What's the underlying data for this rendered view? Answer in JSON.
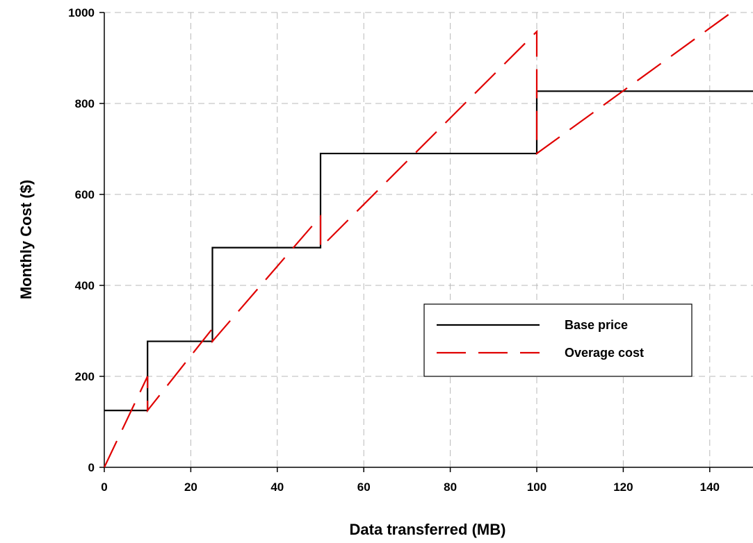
{
  "chart_data": {
    "type": "line",
    "title": "",
    "xlabel": "Data transferred (MB)",
    "ylabel": "Monthly Cost ($)",
    "xlim": [
      0,
      150
    ],
    "ylim": [
      0,
      1000
    ],
    "xticks": [
      0,
      20,
      40,
      60,
      80,
      100,
      120,
      140
    ],
    "yticks": [
      0,
      200,
      400,
      600,
      800,
      1000
    ],
    "grid": true,
    "legend_position": "lower-right",
    "series": [
      {
        "name": "Base price",
        "color": "#000000",
        "style": "solid",
        "x": [
          0,
          10,
          10,
          25,
          25,
          50,
          50,
          100,
          100,
          150
        ],
        "y": [
          125,
          125,
          277,
          277,
          483,
          483,
          690,
          690,
          827,
          827
        ]
      },
      {
        "name": "Overage cost",
        "color": "#e00000",
        "style": "dashed",
        "x": [
          0,
          10,
          10,
          25,
          25,
          50,
          50,
          100,
          100,
          145
        ],
        "y": [
          0,
          200,
          125,
          305,
          277,
          552,
          483,
          958,
          690,
          1000
        ]
      }
    ]
  }
}
